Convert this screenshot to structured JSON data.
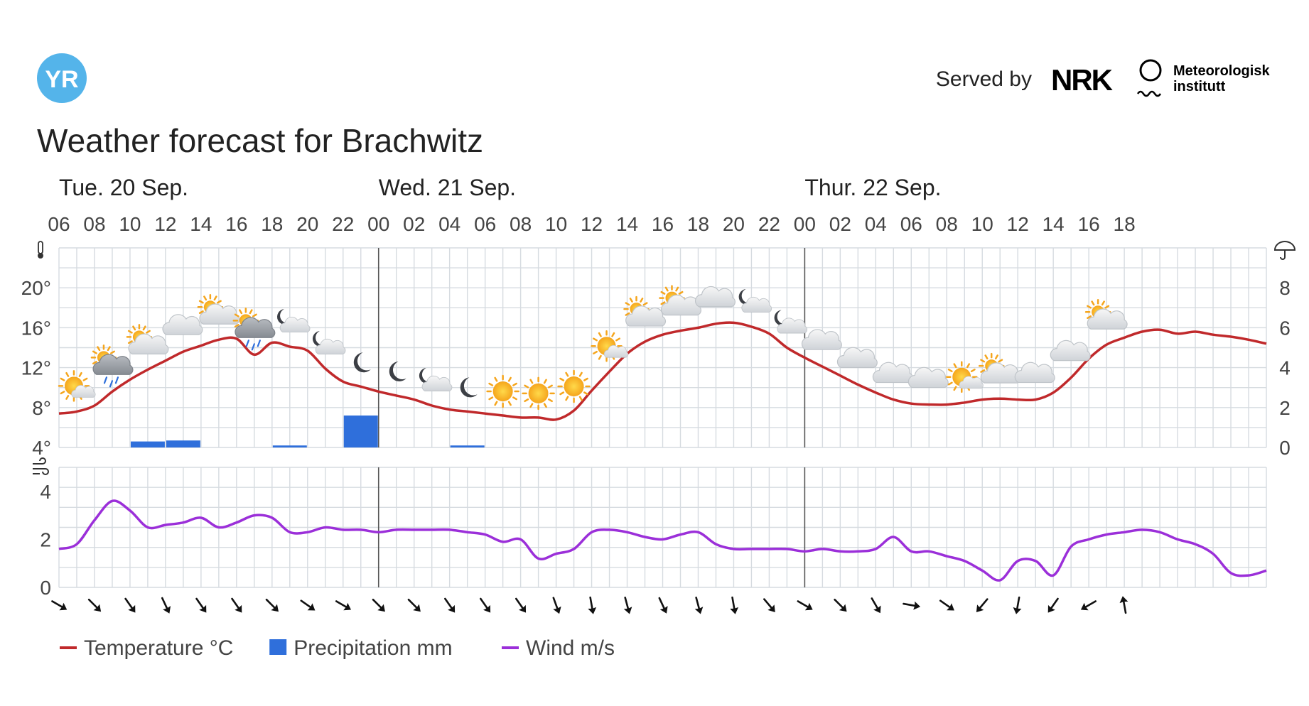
{
  "header": {
    "logo_text": "YR",
    "served_by": "Served by",
    "nrk_text": "NRK",
    "met_line1": "Meteorologisk",
    "met_line2": "institutt",
    "title": "Weather forecast for Brachwitz"
  },
  "legend": [
    {
      "label": "Temperature °C",
      "color": "#c0292b",
      "kind": "line"
    },
    {
      "label": "Precipitation mm",
      "color": "#2f6fdb",
      "kind": "bar"
    },
    {
      "label": "Wind m/s",
      "color": "#9b2fd9",
      "kind": "line"
    }
  ],
  "chart_data": [
    {
      "type": "line",
      "x_start": "Tue. 20 Sep. 06",
      "x_step_hours": 1,
      "day_labels": [
        {
          "label": "Tue. 20 Sep.",
          "hour": 0
        },
        {
          "label": "Wed. 21 Sep.",
          "hour": 18
        },
        {
          "label": "Thur. 22 Sep.",
          "hour": 42
        }
      ],
      "hour_ticks": [
        "06",
        "08",
        "10",
        "12",
        "14",
        "16",
        "18",
        "20",
        "22",
        "00",
        "02",
        "04",
        "06",
        "08",
        "10",
        "12",
        "14",
        "16",
        "18",
        "20",
        "22",
        "00",
        "02",
        "04",
        "06",
        "08",
        "10",
        "12",
        "14",
        "16",
        "18"
      ],
      "y_left_ticks": [
        "4°",
        "8°",
        "12°",
        "16°",
        "20°"
      ],
      "y_left_range": [
        4,
        24
      ],
      "y_right_ticks": [
        "0",
        "2",
        "4",
        "6",
        "8"
      ],
      "y_right_range": [
        0,
        10
      ],
      "series": [
        {
          "name": "Temperature °C",
          "color": "#c0292b",
          "values": [
            7.4,
            7.6,
            8.2,
            9.6,
            10.8,
            11.8,
            12.7,
            13.6,
            14.2,
            14.8,
            14.9,
            13.3,
            14.5,
            14.1,
            13.7,
            11.9,
            10.6,
            10.1,
            9.6,
            9.2,
            8.8,
            8.2,
            7.8,
            7.6,
            7.4,
            7.2,
            7.0,
            7.0,
            6.8,
            7.7,
            9.7,
            11.6,
            13.4,
            14.6,
            15.3,
            15.7,
            16.0,
            16.4,
            16.5,
            16.1,
            15.4,
            14.0,
            13.0,
            12.1,
            11.2,
            10.3,
            9.5,
            8.8,
            8.4,
            8.3,
            8.3,
            8.5,
            8.8,
            8.9,
            8.8,
            8.8,
            9.5,
            11.0,
            12.9,
            14.3,
            15.0,
            15.6,
            15.8,
            15.4,
            15.6,
            15.3,
            15.1,
            14.8,
            14.4
          ]
        },
        {
          "name": "Precipitation mm",
          "color": "#2f6fdb",
          "values": [
            0,
            0,
            0.3,
            0.35,
            0,
            0,
            0.1,
            0,
            1.6,
            0,
            0,
            0.1
          ]
        }
      ]
    },
    {
      "type": "line",
      "y_ticks": [
        "0",
        "2",
        "4"
      ],
      "y_range": [
        0,
        5
      ],
      "series": [
        {
          "name": "Wind m/s",
          "color": "#9b2fd9",
          "values": [
            1.6,
            1.8,
            2.8,
            3.6,
            3.2,
            2.5,
            2.6,
            2.7,
            2.9,
            2.5,
            2.7,
            3.0,
            2.9,
            2.3,
            2.3,
            2.5,
            2.4,
            2.4,
            2.3,
            2.4,
            2.4,
            2.4,
            2.4,
            2.3,
            2.2,
            1.9,
            2.0,
            1.2,
            1.4,
            1.6,
            2.3,
            2.4,
            2.3,
            2.1,
            2.0,
            2.2,
            2.3,
            1.8,
            1.6,
            1.6,
            1.6,
            1.6,
            1.5,
            1.6,
            1.5,
            1.5,
            1.6,
            2.1,
            1.5,
            1.5,
            1.3,
            1.1,
            0.7,
            0.3,
            1.1,
            1.1,
            0.5,
            1.7,
            2.0,
            2.2,
            2.3,
            2.4,
            2.3,
            2.0,
            1.8,
            1.4,
            0.6,
            0.5,
            0.7
          ]
        }
      ]
    }
  ],
  "symbols": [
    {
      "hour": 1,
      "kind": "partly-sunny"
    },
    {
      "hour": 3,
      "kind": "partly-cloudy-rain"
    },
    {
      "hour": 5,
      "kind": "partly-cloudy-day"
    },
    {
      "hour": 7,
      "kind": "cloud"
    },
    {
      "hour": 9,
      "kind": "partly-cloudy-day"
    },
    {
      "hour": 11,
      "kind": "partly-cloudy-rain"
    },
    {
      "hour": 13,
      "kind": "partly-cloudy-night"
    },
    {
      "hour": 15,
      "kind": "partly-cloudy-night"
    },
    {
      "hour": 17,
      "kind": "moon"
    },
    {
      "hour": 19,
      "kind": "moon"
    },
    {
      "hour": 21,
      "kind": "partly-cloudy-night"
    },
    {
      "hour": 23,
      "kind": "moon"
    },
    {
      "hour": 25,
      "kind": "sun"
    },
    {
      "hour": 27,
      "kind": "sun"
    },
    {
      "hour": 29,
      "kind": "sun"
    },
    {
      "hour": 31,
      "kind": "partly-sunny"
    },
    {
      "hour": 33,
      "kind": "partly-cloudy-day"
    },
    {
      "hour": 35,
      "kind": "partly-cloudy-day"
    },
    {
      "hour": 37,
      "kind": "cloud"
    },
    {
      "hour": 39,
      "kind": "partly-cloudy-night"
    },
    {
      "hour": 41,
      "kind": "partly-cloudy-night"
    },
    {
      "hour": 43,
      "kind": "cloud"
    },
    {
      "hour": 45,
      "kind": "cloud"
    },
    {
      "hour": 47,
      "kind": "cloud"
    },
    {
      "hour": 49,
      "kind": "cloud"
    },
    {
      "hour": 51,
      "kind": "partly-sunny"
    },
    {
      "hour": 53,
      "kind": "partly-cloudy-day"
    },
    {
      "hour": 55,
      "kind": "cloud"
    },
    {
      "hour": 57,
      "kind": "cloud"
    },
    {
      "hour": 59,
      "kind": "partly-cloudy-day"
    }
  ],
  "wind_directions_deg": [
    120,
    135,
    145,
    155,
    145,
    145,
    135,
    125,
    120,
    135,
    135,
    145,
    145,
    145,
    160,
    170,
    165,
    155,
    165,
    170,
    140,
    120,
    135,
    150,
    100,
    125,
    220,
    190,
    215,
    240,
    350
  ]
}
